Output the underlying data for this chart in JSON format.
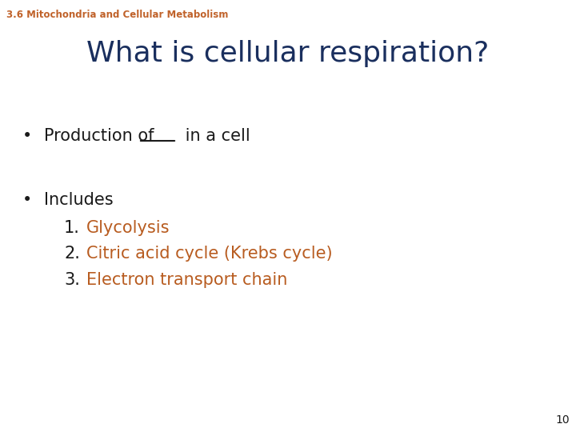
{
  "background_color": "#ffffff",
  "header_text": "3.6 Mitochondria and Cellular Metabolism",
  "header_color": "#c0622a",
  "header_fontsize": 8.5,
  "title_text": "What is cellular respiration?",
  "title_color": "#1a2f5e",
  "title_fontsize": 26,
  "title_weight": "normal",
  "bullet_color": "#1a1a1a",
  "bullet_fontsize": 15,
  "bullet1_pre": "Production of ",
  "bullet1_blank": "     ",
  "bullet1_post": " in a cell",
  "bullet2_text": "Includes",
  "numbered_items": [
    "Glycolysis",
    "Citric acid cycle (Krebs cycle)",
    "Electron transport chain"
  ],
  "numbered_color": "#b85c20",
  "numbered_fontsize": 15,
  "page_number": "10",
  "page_number_color": "#1a1a1a",
  "page_number_fontsize": 10
}
